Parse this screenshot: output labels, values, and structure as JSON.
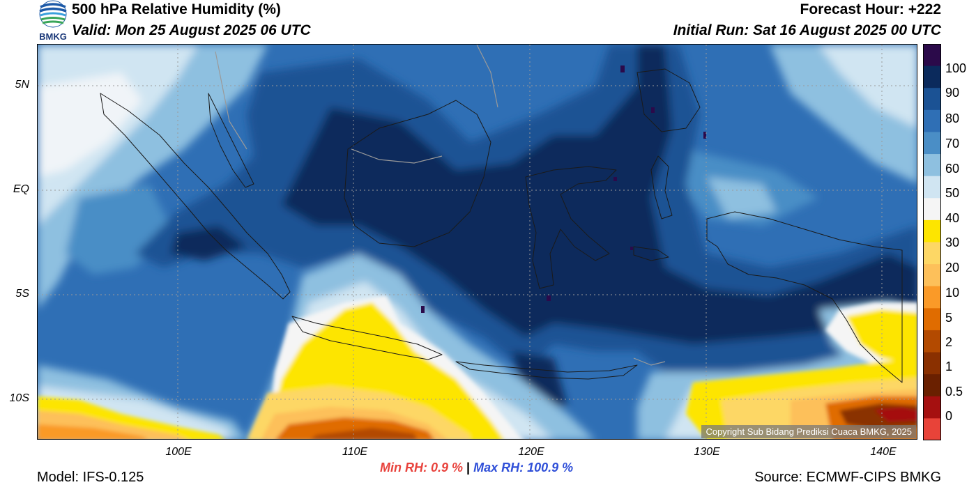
{
  "header": {
    "title": "500 hPa Relative Humidity (%)",
    "valid": "Valid: Mon 25 August 2025 06 UTC",
    "forecast_hour": "Forecast Hour: +222",
    "initial_run": "Initial Run: Sat 16 August 2025 00 UTC",
    "logo_text": "BMKG"
  },
  "axes": {
    "lat_labels": [
      "5N",
      "EQ",
      "5S",
      "10S"
    ],
    "lon_labels": [
      "100E",
      "110E",
      "120E",
      "130E",
      "140E"
    ],
    "lon_range": [
      92,
      142
    ],
    "lat_range": [
      -12,
      7
    ]
  },
  "colorbar": {
    "labels": [
      "100",
      "90",
      "80",
      "70",
      "60",
      "50",
      "40",
      "30",
      "20",
      "10",
      "5",
      "2",
      "1",
      "0.5",
      "0"
    ],
    "colors": [
      "#2b0a4a",
      "#0b2a5c",
      "#1b5294",
      "#2f6fb5",
      "#4a8ec6",
      "#8ec0e0",
      "#d0e5f2",
      "#f5f5f5",
      "#fde500",
      "#fdd765",
      "#fdc05a",
      "#fa9a28",
      "#e06c00",
      "#b34a00",
      "#8a3000",
      "#6a2000",
      "#a51010",
      "#e84339"
    ]
  },
  "copyright": "Copyright Sub Bidang Prediksi Cuaca BMKG, 2025",
  "stats": {
    "min_rh": "Min RH:   0.9 %",
    "separator": "|",
    "max_rh": "Max RH: 100.9 %"
  },
  "footer": {
    "model": "Model: IFS-0.125",
    "source": "Source: ECMWF-CIPS BMKG"
  }
}
